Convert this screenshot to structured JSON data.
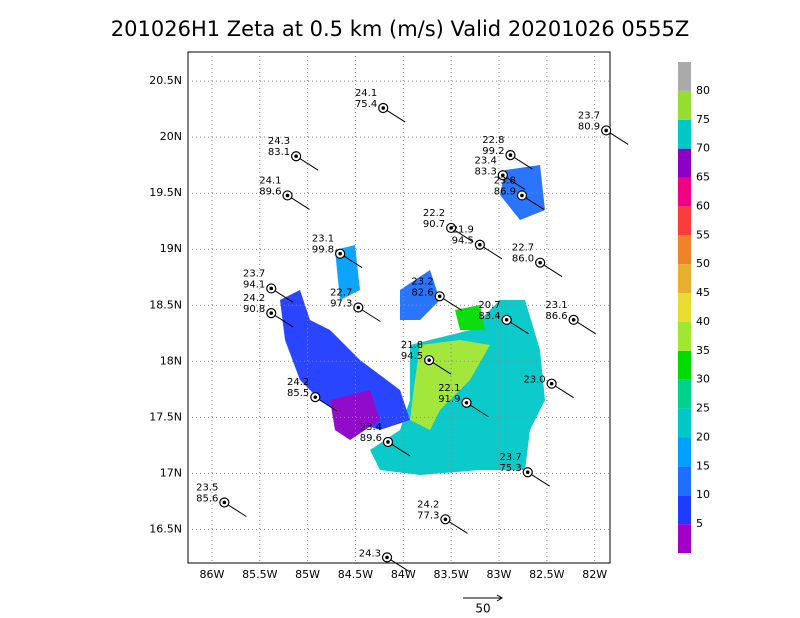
{
  "title": "201026H1 Zeta at 0.5 km (m/s) Valid 20201026 0555Z",
  "map": {
    "lon_range": [
      -86.25,
      -81.84
    ],
    "lat_range": [
      16.2,
      20.76
    ],
    "lon_ticks": [
      {
        "value": -86,
        "label": "86W"
      },
      {
        "value": -85.5,
        "label": "85.5W"
      },
      {
        "value": -85,
        "label": "85W"
      },
      {
        "value": -84.5,
        "label": "84.5W"
      },
      {
        "value": -84,
        "label": "84W"
      },
      {
        "value": -83.5,
        "label": "83.5W"
      },
      {
        "value": -83,
        "label": "83W"
      },
      {
        "value": -82.5,
        "label": "82.5W"
      },
      {
        "value": -82,
        "label": "82W"
      }
    ],
    "lat_ticks": [
      {
        "value": 16.5,
        "label": "16.5N"
      },
      {
        "value": 17,
        "label": "17N"
      },
      {
        "value": 17.5,
        "label": "17.5N"
      },
      {
        "value": 18,
        "label": "18N"
      },
      {
        "value": 18.5,
        "label": "18.5N"
      },
      {
        "value": 19,
        "label": "19N"
      },
      {
        "value": 19.5,
        "label": "19.5N"
      },
      {
        "value": 20,
        "label": "20N"
      },
      {
        "value": 20.5,
        "label": "20.5N"
      }
    ],
    "stations": [
      {
        "lon": -84.21,
        "lat": 20.26,
        "labels": [
          "24.1",
          "75.4"
        ]
      },
      {
        "lon": -85.12,
        "lat": 19.83,
        "labels": [
          "24.3",
          "83.1"
        ]
      },
      {
        "lon": -85.21,
        "lat": 19.48,
        "labels": [
          "24.1",
          "89.6"
        ]
      },
      {
        "lon": -81.88,
        "lat": 20.06,
        "labels": [
          "23.7",
          "80.9"
        ]
      },
      {
        "lon": -82.88,
        "lat": 19.84,
        "labels": [
          "22.8",
          "99.2"
        ]
      },
      {
        "lon": -82.96,
        "lat": 19.66,
        "labels": [
          "23.4",
          "83.3"
        ]
      },
      {
        "lon": -82.76,
        "lat": 19.48,
        "labels": [
          "23.8",
          "86.9"
        ]
      },
      {
        "lon": -83.5,
        "lat": 19.19,
        "labels": [
          "22.2",
          "90.7"
        ]
      },
      {
        "lon": -83.2,
        "lat": 19.04,
        "labels": [
          "21.9",
          "94.5"
        ]
      },
      {
        "lon": -82.57,
        "lat": 18.88,
        "labels": [
          "22.7",
          "86.0"
        ]
      },
      {
        "lon": -84.66,
        "lat": 18.96,
        "labels": [
          "23.1",
          "99.8"
        ]
      },
      {
        "lon": -85.38,
        "lat": 18.65,
        "labels": [
          "23.7",
          "94.1"
        ]
      },
      {
        "lon": -85.38,
        "lat": 18.43,
        "labels": [
          "24.2",
          "90.8"
        ]
      },
      {
        "lon": -84.47,
        "lat": 18.48,
        "labels": [
          "22.7",
          "97.3"
        ]
      },
      {
        "lon": -83.62,
        "lat": 18.58,
        "labels": [
          "23.2",
          "82.6"
        ]
      },
      {
        "lon": -82.22,
        "lat": 18.37,
        "labels": [
          "23.1",
          "86.6"
        ]
      },
      {
        "lon": -82.92,
        "lat": 18.37,
        "labels": [
          "20.7",
          "83.4"
        ]
      },
      {
        "lon": -83.73,
        "lat": 18.01,
        "labels": [
          "21.8",
          "94.5"
        ]
      },
      {
        "lon": -84.92,
        "lat": 17.68,
        "labels": [
          "24.2",
          "85.5"
        ]
      },
      {
        "lon": -83.34,
        "lat": 17.63,
        "labels": [
          "22.1",
          "91.9"
        ]
      },
      {
        "lon": -82.45,
        "lat": 17.8,
        "labels": [
          "23.0"
        ]
      },
      {
        "lon": -84.16,
        "lat": 17.28,
        "labels": [
          "23.4",
          "89.6"
        ]
      },
      {
        "lon": -82.7,
        "lat": 17.01,
        "labels": [
          "23.7",
          "75.3"
        ]
      },
      {
        "lon": -85.87,
        "lat": 16.74,
        "labels": [
          "23.5",
          "85.6"
        ]
      },
      {
        "lon": -83.56,
        "lat": 16.59,
        "labels": [
          "24.2",
          "77.3"
        ]
      },
      {
        "lon": -84.17,
        "lat": 16.25,
        "labels": [
          "24.3"
        ]
      }
    ]
  },
  "colorbar": {
    "levels": [
      5,
      10,
      15,
      20,
      25,
      30,
      35,
      40,
      45,
      50,
      55,
      60,
      65,
      70,
      75,
      80
    ],
    "colors": [
      "#a000c8",
      "#1e3cff",
      "#1e6eff",
      "#00a0ff",
      "#00c8c8",
      "#00d28c",
      "#00dc00",
      "#a0e632",
      "#e6dc32",
      "#e6af2d",
      "#f08228",
      "#fa3c3c",
      "#f00082",
      "#8c00c8",
      "#00c8c8",
      "#96dc32",
      "#aaaaaa"
    ]
  },
  "reference_vector": {
    "label": "50"
  }
}
